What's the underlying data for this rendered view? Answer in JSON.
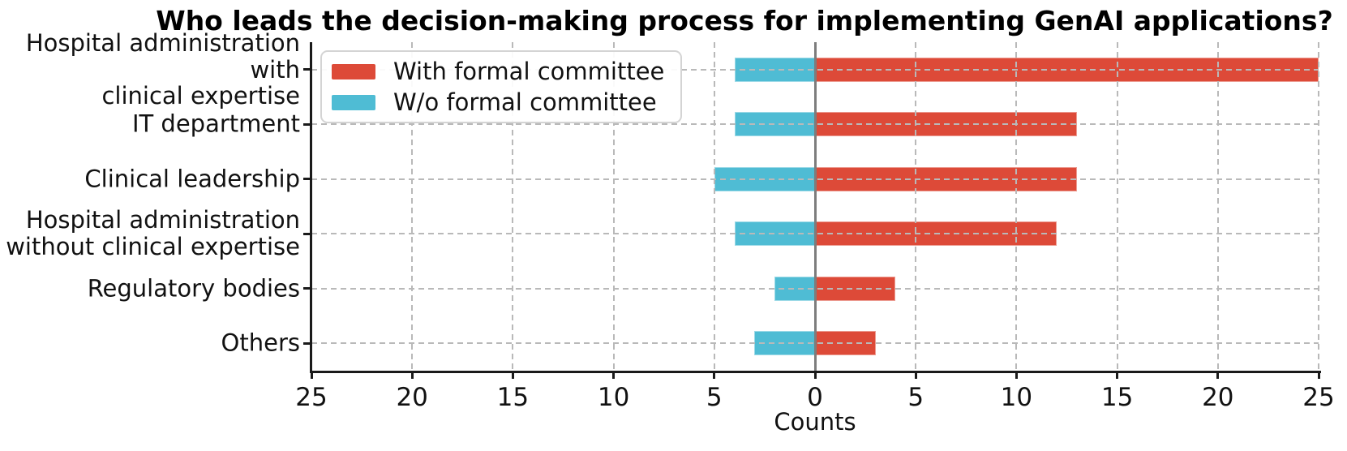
{
  "chart_data": {
    "type": "bar",
    "variant": "diverging-horizontal",
    "title": "Who leads the decision-making process for implementing GenAI applications?",
    "xlabel": "Counts",
    "categories": [
      "Hospital administration with\nclinical expertise",
      "IT department",
      "Clinical leadership",
      "Hospital administration\nwithout clinical expertise",
      "Regulatory bodies",
      "Others"
    ],
    "series": [
      {
        "name": "With formal committee",
        "color": "#dd4a38",
        "side": "right",
        "values": [
          25,
          13,
          13,
          12,
          4,
          3
        ]
      },
      {
        "name": "W/o formal committee",
        "color": "#4fbcd4",
        "side": "left",
        "values": [
          4,
          4,
          5,
          4,
          2,
          3
        ]
      }
    ],
    "xlim": [
      -25,
      25
    ],
    "xticks": [
      -25,
      -20,
      -15,
      -10,
      -5,
      0,
      5,
      10,
      15,
      20,
      25
    ],
    "xtick_labels": [
      "25",
      "20",
      "15",
      "10",
      "5",
      "0",
      "5",
      "10",
      "15",
      "20",
      "25"
    ],
    "grid": "dashed",
    "legend_position": "upper-left",
    "colors": {
      "zero_line": "#7d7d7d",
      "grid": "#b9b9b9",
      "spine": "#1a1a1a",
      "background": "#ffffff"
    }
  }
}
